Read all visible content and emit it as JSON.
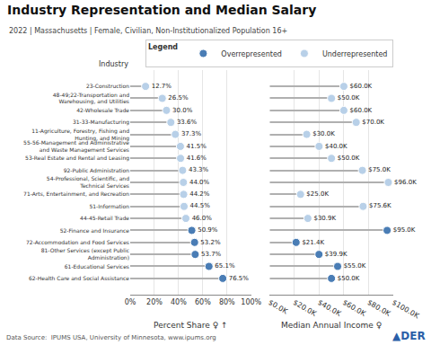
{
  "chart_data": [
    {
      "type": "lollipop",
      "orientation": "horizontal",
      "title": "Industry Representation and Median Salary",
      "subtitle": "2022 | Massachusetts | Female, Civilian, Non-Institutionalized Population 16+",
      "ylabel": "Industry",
      "xlabel": "Percent Share ♀ ↑",
      "categories": [
        "23-Construction",
        "48-49;22-Transportation and\nWarehousing, and Utilities",
        "42-Wholesale Trade",
        "31-33-Manufacturing",
        "11-Agriculture, Forestry, Fishing and\nHunting, and Mining",
        "55-56-Management and Administrative\nand Waste Management Services",
        "53-Real Estate and Rental and Leasing",
        "92-Public Administration",
        "54-Professional, Scientific, and\nTechnical Services",
        "71-Arts, Entertainment, and Recreation",
        "51-Information",
        "44-45-Retail Trade",
        "52-Finance and Insurance",
        "72-Accommodation and Food Services",
        "81-Other Services (except Public\nAdministration)",
        "61-Educational Services",
        "62-Health Care and Social Assistance"
      ],
      "series": [
        {
          "name": "Overrepresented",
          "color": "#4a7db5",
          "marker": "circle",
          "values": [
            null,
            null,
            null,
            null,
            null,
            null,
            null,
            null,
            null,
            null,
            null,
            null,
            50.9,
            53.2,
            53.7,
            65.1,
            76.5
          ],
          "value_labels": [
            null,
            null,
            null,
            null,
            null,
            null,
            null,
            null,
            null,
            null,
            null,
            null,
            "50.9%",
            "53.2%",
            "53.7%",
            "65.1%",
            "76.5%"
          ]
        },
        {
          "name": "Underrepresented",
          "color": "#b8d0e8",
          "marker": "circle",
          "values": [
            12.7,
            26.5,
            30.0,
            33.6,
            37.3,
            41.5,
            41.6,
            43.3,
            44.0,
            44.2,
            44.5,
            46.0,
            null,
            null,
            null,
            null,
            null
          ],
          "value_labels": [
            "12.7%",
            "26.5%",
            "30.0%",
            "33.6%",
            "37.3%",
            "41.5%",
            "41.6%",
            "43.3%",
            "44.0%",
            "44.2%",
            "44.5%",
            "46.0%",
            null,
            null,
            null,
            null,
            null
          ]
        }
      ],
      "xlim": [
        0,
        100
      ],
      "xticks": [
        {
          "value": 0,
          "label": "0%"
        },
        {
          "value": 20,
          "label": "20%"
        },
        {
          "value": 40,
          "label": "40%"
        },
        {
          "value": 60,
          "label": "60%"
        },
        {
          "value": 80,
          "label": "80%"
        },
        {
          "value": 100,
          "label": "100%"
        }
      ],
      "grid": true,
      "data_labels": true,
      "legend": "top right",
      "annotations": [
        {
          "text": "Data Source:  IPUMS USA, University of Minnesota, www.ipums.org"
        },
        {
          "text": "▲DER",
          "color": "#2b5fa8"
        },
        {
          "text": "Legend"
        }
      ]
    },
    {
      "type": "lollipop",
      "orientation": "horizontal",
      "xlabel": "Median Annual Income ♀",
      "categories": [
        "23-Construction",
        "48-49;22-Transportation and\nWarehousing, and Utilities",
        "42-Wholesale Trade",
        "31-33-Manufacturing",
        "11-Agriculture, Forestry, Fishing and\nHunting, and Mining",
        "55-56-Management and Administrative\nand Waste Management Services",
        "53-Real Estate and Rental and Leasing",
        "92-Public Administration",
        "54-Professional, Scientific, and\nTechnical Services",
        "71-Arts, Entertainment, and Recreation",
        "51-Information",
        "44-45-Retail Trade",
        "52-Finance and Insurance",
        "72-Accommodation and Food Services",
        "81-Other Services (except Public\nAdministration)",
        "61-Educational Services",
        "62-Health Care and Social Assistance"
      ],
      "series": [
        {
          "name": "Overrepresented",
          "color": "#4a7db5",
          "marker": "circle",
          "values": [
            null,
            null,
            null,
            null,
            null,
            null,
            null,
            null,
            null,
            null,
            null,
            null,
            95000,
            21400,
            39900,
            55000,
            50000
          ],
          "value_labels": [
            null,
            null,
            null,
            null,
            null,
            null,
            null,
            null,
            null,
            null,
            null,
            null,
            "$95.0K",
            "$21.4K",
            "$39.9K",
            "$55.0K",
            "$50.0K"
          ]
        },
        {
          "name": "Underrepresented",
          "color": "#b8d0e8",
          "marker": "circle",
          "values": [
            60000,
            50000,
            60000,
            70000,
            30000,
            40000,
            50000,
            75000,
            96000,
            25000,
            75600,
            30900,
            null,
            null,
            null,
            null,
            null
          ],
          "value_labels": [
            "$60.0K",
            "$50.0K",
            "$60.0K",
            "$70.0K",
            "$30.0K",
            "$40.0K",
            "$50.0K",
            "$75.0K",
            "$96.0K",
            "$25.0K",
            "$75.6K",
            "$30.9K",
            null,
            null,
            null,
            null,
            null
          ]
        }
      ],
      "xlim": [
        0,
        100000
      ],
      "xticks": [
        {
          "value": 0,
          "label": "$0.0K"
        },
        {
          "value": 20000,
          "label": "$20.0K"
        },
        {
          "value": 40000,
          "label": "$40.0K"
        },
        {
          "value": 60000,
          "label": "$60.0K"
        },
        {
          "value": 80000,
          "label": "$80.0K"
        },
        {
          "value": 100000,
          "label": "$100.0K"
        }
      ],
      "grid": true,
      "data_labels": true
    }
  ]
}
